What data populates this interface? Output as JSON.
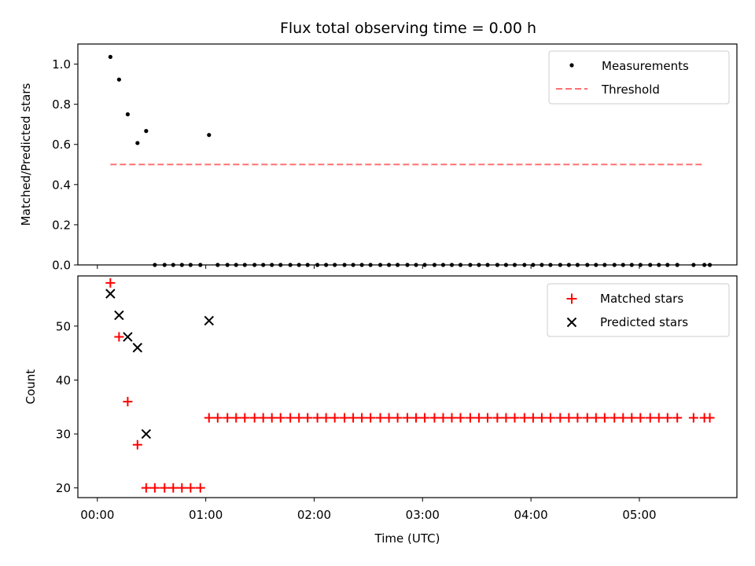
{
  "chart_data": [
    {
      "type": "scatter",
      "title": "Flux total observing time = 0.00 h",
      "xlabel": "",
      "ylabel": "Matched/Predicted stars",
      "xlim": [
        -0.18,
        5.9
      ],
      "ylim": [
        0.0,
        1.1
      ],
      "x_ticks_shown": false,
      "y_ticks": [
        0.0,
        0.2,
        0.4,
        0.6,
        0.8,
        1.0
      ],
      "y_tick_labels": [
        "0.0",
        "0.2",
        "0.4",
        "0.6",
        "0.8",
        "1.0"
      ],
      "grid": false,
      "legend_placement": "top-right",
      "series": [
        {
          "name": "Measurements",
          "kind": "scatter",
          "marker": "dot",
          "color": "#000000",
          "x": [
            0.12,
            0.2,
            0.28,
            0.37,
            0.45,
            0.53,
            0.62,
            0.7,
            0.78,
            0.86,
            0.95,
            1.03,
            1.11,
            1.2,
            1.28,
            1.36,
            1.45,
            1.53,
            1.61,
            1.69,
            1.78,
            1.86,
            1.94,
            2.03,
            2.11,
            2.19,
            2.28,
            2.36,
            2.44,
            2.52,
            2.61,
            2.69,
            2.77,
            2.86,
            2.94,
            3.02,
            3.11,
            3.19,
            3.27,
            3.35,
            3.44,
            3.52,
            3.6,
            3.69,
            3.77,
            3.85,
            3.94,
            4.02,
            4.1,
            4.18,
            4.27,
            4.35,
            4.43,
            4.52,
            4.6,
            4.68,
            4.77,
            4.85,
            4.93,
            5.01,
            5.1,
            5.18,
            5.26,
            5.35,
            5.5,
            5.6,
            5.65
          ],
          "y": [
            1.036,
            0.923,
            0.75,
            0.607,
            0.667,
            0,
            0,
            0,
            0,
            0,
            0,
            0.647,
            0,
            0,
            0,
            0,
            0,
            0,
            0,
            0,
            0,
            0,
            0,
            0,
            0,
            0,
            0,
            0,
            0,
            0,
            0,
            0,
            0,
            0,
            0,
            0,
            0,
            0,
            0,
            0,
            0,
            0,
            0,
            0,
            0,
            0,
            0,
            0,
            0,
            0,
            0,
            0,
            0,
            0,
            0,
            0,
            0,
            0,
            0,
            0,
            0,
            0,
            0,
            0,
            0,
            0,
            0
          ]
        },
        {
          "name": "Threshold",
          "kind": "line",
          "style": "dashed",
          "color": "#ff7070",
          "x": [
            0.12,
            5.6
          ],
          "y": [
            0.5,
            0.5
          ]
        }
      ]
    },
    {
      "type": "scatter",
      "title": "",
      "xlabel": "Time (UTC)",
      "ylabel": "Count",
      "xlim": [
        -0.18,
        5.9
      ],
      "ylim": [
        18.2,
        59.3
      ],
      "x_ticks": [
        0,
        1,
        2,
        3,
        4,
        5
      ],
      "x_tick_labels": [
        "00:00",
        "01:00",
        "02:00",
        "03:00",
        "04:00",
        "05:00"
      ],
      "y_ticks": [
        20,
        30,
        40,
        50
      ],
      "y_tick_labels": [
        "20",
        "30",
        "40",
        "50"
      ],
      "grid": false,
      "legend_placement": "top-right",
      "series": [
        {
          "name": "Matched stars",
          "kind": "scatter",
          "marker": "plus",
          "color": "#ff0000",
          "x": [
            0.12,
            0.2,
            0.28,
            0.37,
            0.45,
            0.53,
            0.62,
            0.7,
            0.78,
            0.86,
            0.95,
            1.03,
            1.11,
            1.2,
            1.28,
            1.36,
            1.45,
            1.53,
            1.61,
            1.69,
            1.78,
            1.86,
            1.94,
            2.03,
            2.11,
            2.19,
            2.28,
            2.36,
            2.44,
            2.52,
            2.61,
            2.69,
            2.77,
            2.86,
            2.94,
            3.02,
            3.11,
            3.19,
            3.27,
            3.35,
            3.44,
            3.52,
            3.6,
            3.69,
            3.77,
            3.85,
            3.94,
            4.02,
            4.1,
            4.18,
            4.27,
            4.35,
            4.43,
            4.52,
            4.6,
            4.68,
            4.77,
            4.85,
            4.93,
            5.01,
            5.1,
            5.18,
            5.26,
            5.35,
            5.5,
            5.6,
            5.65
          ],
          "y": [
            58,
            48,
            36,
            28,
            20,
            20,
            20,
            20,
            20,
            20,
            20,
            33,
            33,
            33,
            33,
            33,
            33,
            33,
            33,
            33,
            33,
            33,
            33,
            33,
            33,
            33,
            33,
            33,
            33,
            33,
            33,
            33,
            33,
            33,
            33,
            33,
            33,
            33,
            33,
            33,
            33,
            33,
            33,
            33,
            33,
            33,
            33,
            33,
            33,
            33,
            33,
            33,
            33,
            33,
            33,
            33,
            33,
            33,
            33,
            33,
            33,
            33,
            33,
            33,
            33,
            33,
            33
          ]
        },
        {
          "name": "Predicted stars",
          "kind": "scatter",
          "marker": "x",
          "color": "#000000",
          "x": [
            0.12,
            0.2,
            0.28,
            0.37,
            0.45,
            1.03
          ],
          "y": [
            56,
            52,
            48,
            46,
            30,
            51
          ]
        }
      ]
    }
  ]
}
